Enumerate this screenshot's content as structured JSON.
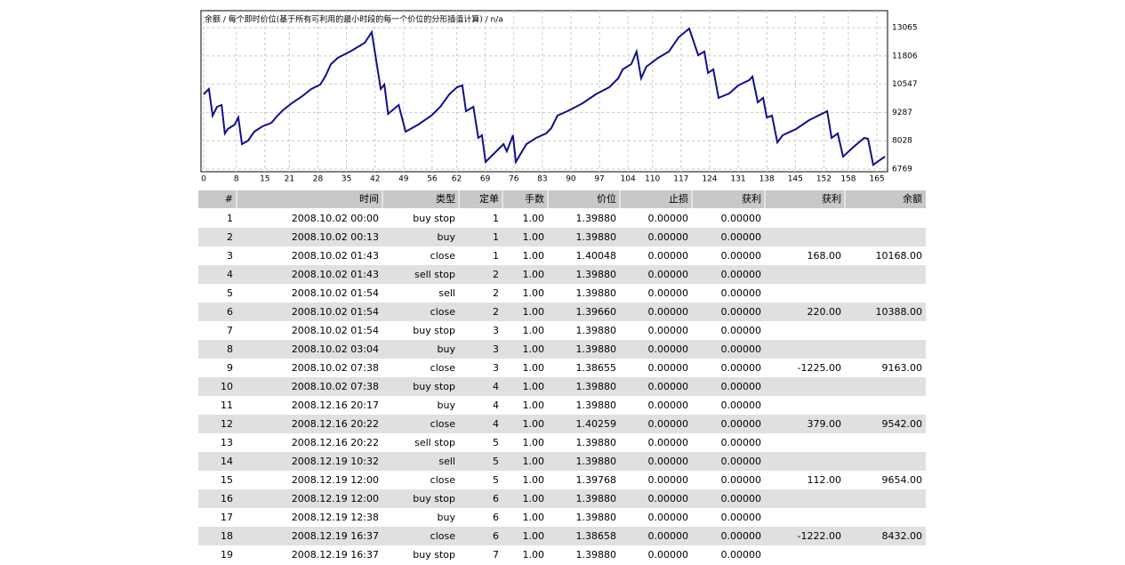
{
  "chart_data": {
    "type": "line",
    "title": "余额 / 每个即时价位(基于所有可利用的最小时段的每一个价位的分形插值计算) / n/a",
    "x": [
      0,
      1.3,
      2.2,
      3.3,
      4.4,
      5.2,
      5.9,
      7.6,
      8.5,
      9.4,
      10.9,
      12.4,
      14.4,
      16.6,
      18.1,
      19.4,
      21.6,
      24.2,
      26.4,
      28.6,
      29.9,
      31.2,
      32.9,
      36.2,
      39.5,
      41.2,
      43.4,
      44.3,
      45.2,
      47.8,
      49.5,
      52.6,
      55.8,
      58.0,
      60.2,
      62.1,
      63.4,
      64.3,
      66.1,
      67.3,
      68.2,
      69.1,
      71.3,
      73.5,
      74.3,
      75.8,
      76.5,
      79.1,
      81.5,
      83.9,
      85.2,
      86.7,
      89.6,
      92.9,
      96.1,
      99.4,
      101.6,
      102.7,
      104.8,
      106.1,
      107.2,
      108.5,
      111.4,
      114.0,
      116.4,
      119.0,
      121.2,
      122.7,
      123.6,
      124.9,
      126.2,
      128.8,
      131.0,
      133.7,
      134.5,
      135.8,
      137.1,
      138.0,
      139.3,
      140.6,
      141.9,
      145.2,
      148.4,
      152.8,
      153.9,
      155.4,
      156.7,
      159.3,
      161.9,
      162.8,
      164.1,
      165.9,
      167.0
    ],
    "series": [
      {
        "name": "余额",
        "color": "#10108c",
        "values": [
          10095,
          10333,
          9145,
          9541,
          9620,
          8353,
          8551,
          8749,
          9065,
          7877,
          8036,
          8432,
          8670,
          8828,
          9145,
          9382,
          9699,
          10016,
          10333,
          10531,
          10927,
          11441,
          11719,
          12035,
          12392,
          12867,
          10333,
          10531,
          9224,
          9620,
          8432,
          8749,
          9145,
          9541,
          10095,
          10412,
          10491,
          9343,
          9541,
          8155,
          8274,
          7085,
          7481,
          7877,
          7560,
          8274,
          7085,
          7877,
          8155,
          8353,
          8590,
          9145,
          9382,
          9699,
          10095,
          10412,
          10808,
          11204,
          11441,
          11996,
          10808,
          11323,
          11719,
          11996,
          12630,
          13025,
          11838,
          11996,
          11046,
          11204,
          9937,
          10135,
          10491,
          10729,
          10887,
          9739,
          9937,
          9065,
          9145,
          7957,
          8274,
          8551,
          8947,
          9343,
          8155,
          8353,
          7323,
          7758,
          8155,
          8115,
          6956,
          7194,
          7323
        ]
      }
    ],
    "xlim": [
      -0.65,
      167.6
    ],
    "ylim": [
      6650,
      13820
    ],
    "xticks": [
      0,
      8,
      15,
      21,
      28,
      35,
      42,
      49,
      56,
      62,
      69,
      76,
      83,
      90,
      97,
      104,
      110,
      117,
      124,
      131,
      138,
      145,
      152,
      158,
      165
    ],
    "yticks": [
      6769,
      8028,
      9287,
      10547,
      11806,
      13065
    ],
    "grid": true
  },
  "table": {
    "columns": [
      "#",
      "时间",
      "类型",
      "定单",
      "手数",
      "价位",
      "止损",
      "获利",
      "获利",
      "余额"
    ],
    "rows": [
      [
        "1",
        "2008.10.02 00:00",
        "buy stop",
        "1",
        "1.00",
        "1.39880",
        "0.00000",
        "0.00000"
      ],
      [
        "2",
        "2008.10.02 00:13",
        "buy",
        "1",
        "1.00",
        "1.39880",
        "0.00000",
        "0.00000"
      ],
      [
        "3",
        "2008.10.02 01:43",
        "close",
        "1",
        "1.00",
        "1.40048",
        "0.00000",
        "0.00000",
        "168.00",
        "10168.00"
      ],
      [
        "4",
        "2008.10.02 01:43",
        "sell stop",
        "2",
        "1.00",
        "1.39880",
        "0.00000",
        "0.00000"
      ],
      [
        "5",
        "2008.10.02 01:54",
        "sell",
        "2",
        "1.00",
        "1.39880",
        "0.00000",
        "0.00000"
      ],
      [
        "6",
        "2008.10.02 01:54",
        "close",
        "2",
        "1.00",
        "1.39660",
        "0.00000",
        "0.00000",
        "220.00",
        "10388.00"
      ],
      [
        "7",
        "2008.10.02 01:54",
        "buy stop",
        "3",
        "1.00",
        "1.39880",
        "0.00000",
        "0.00000"
      ],
      [
        "8",
        "2008.10.02 03:04",
        "buy",
        "3",
        "1.00",
        "1.39880",
        "0.00000",
        "0.00000"
      ],
      [
        "9",
        "2008.10.02 07:38",
        "close",
        "3",
        "1.00",
        "1.38655",
        "0.00000",
        "0.00000",
        "-1225.00",
        "9163.00"
      ],
      [
        "10",
        "2008.10.02 07:38",
        "buy stop",
        "4",
        "1.00",
        "1.39880",
        "0.00000",
        "0.00000"
      ],
      [
        "11",
        "2008.12.16 20:17",
        "buy",
        "4",
        "1.00",
        "1.39880",
        "0.00000",
        "0.00000"
      ],
      [
        "12",
        "2008.12.16 20:22",
        "close",
        "4",
        "1.00",
        "1.40259",
        "0.00000",
        "0.00000",
        "379.00",
        "9542.00"
      ],
      [
        "13",
        "2008.12.16 20:22",
        "sell stop",
        "5",
        "1.00",
        "1.39880",
        "0.00000",
        "0.00000"
      ],
      [
        "14",
        "2008.12.19 10:32",
        "sell",
        "5",
        "1.00",
        "1.39880",
        "0.00000",
        "0.00000"
      ],
      [
        "15",
        "2008.12.19 12:00",
        "close",
        "5",
        "1.00",
        "1.39768",
        "0.00000",
        "0.00000",
        "112.00",
        "9654.00"
      ],
      [
        "16",
        "2008.12.19 12:00",
        "buy stop",
        "6",
        "1.00",
        "1.39880",
        "0.00000",
        "0.00000"
      ],
      [
        "17",
        "2008.12.19 12:38",
        "buy",
        "6",
        "1.00",
        "1.39880",
        "0.00000",
        "0.00000"
      ],
      [
        "18",
        "2008.12.19 16:37",
        "close",
        "6",
        "1.00",
        "1.38658",
        "0.00000",
        "0.00000",
        "-1222.00",
        "8432.00"
      ],
      [
        "19",
        "2008.12.19 16:37",
        "buy stop",
        "7",
        "1.00",
        "1.39880",
        "0.00000",
        "0.00000"
      ]
    ]
  }
}
